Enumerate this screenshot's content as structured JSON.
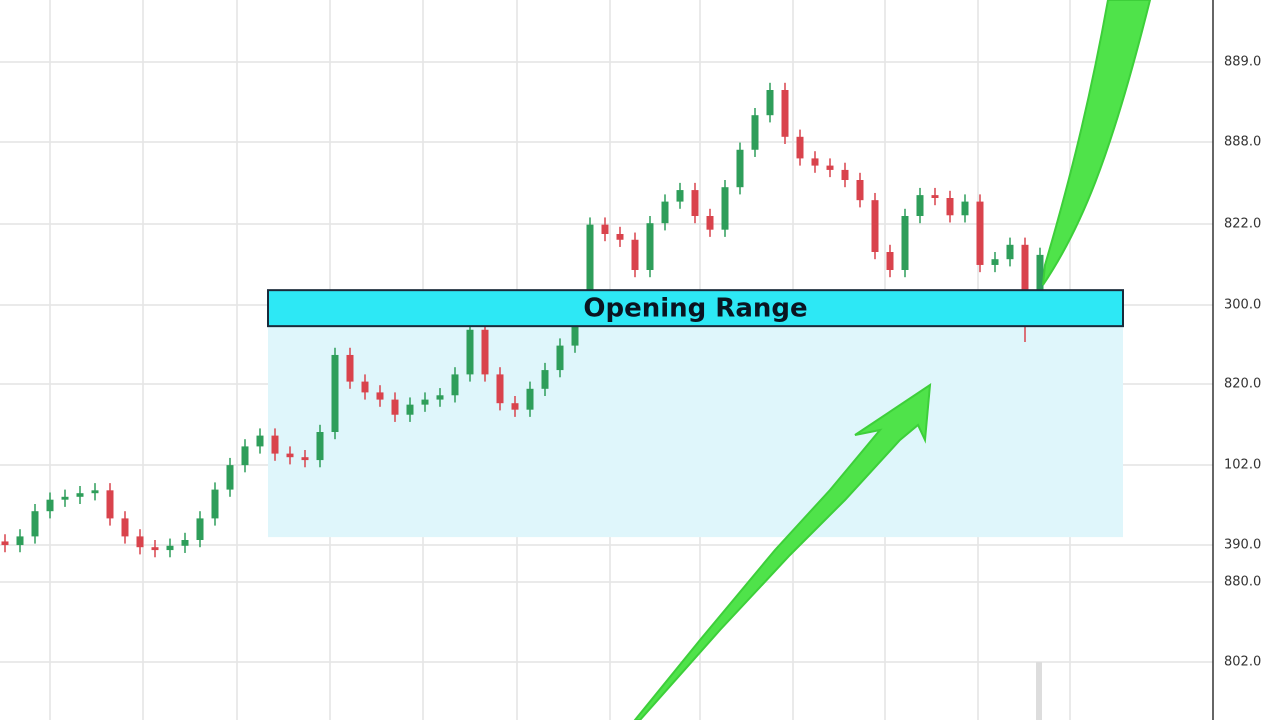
{
  "chart_data": {
    "type": "candlestick",
    "ylim": [
      0,
      100
    ],
    "up_color": "#2e9e5a",
    "down_color": "#d9434c",
    "open": [
      24.8,
      24.3,
      25.5,
      29,
      30.6,
      31,
      31.5,
      31.9,
      28,
      25.5,
      24,
      23.6,
      24.2,
      25,
      28,
      32,
      35.4,
      38,
      39.5,
      37,
      36.5,
      36.1,
      40,
      50.7,
      47,
      45.5,
      44.5,
      42.4,
      43.8,
      44.5,
      45.1,
      48,
      54.2,
      48,
      44,
      43.1,
      46,
      48.6,
      52,
      56,
      68.8,
      67.5,
      66.7,
      62.5,
      69,
      72,
      73.6,
      70,
      68.1,
      74,
      79.2,
      84,
      87.5,
      81,
      78,
      77,
      76.4,
      75,
      72.2,
      65,
      62.5,
      70,
      72.9,
      72.5,
      70.1,
      72,
      63.2,
      64,
      66,
      55.6
    ],
    "high": [
      25.8,
      26.5,
      30,
      31.6,
      32,
      32.5,
      32.9,
      32.9,
      29,
      26.5,
      25,
      25.2,
      26,
      29,
      33,
      36.4,
      39,
      40.5,
      40.5,
      38,
      37.5,
      41,
      51.7,
      51.7,
      48,
      46.5,
      45.5,
      44.8,
      45.5,
      46.1,
      49,
      55.2,
      55.2,
      49,
      45,
      47,
      49.6,
      53,
      57,
      69.8,
      69.8,
      68.5,
      67.7,
      70,
      73,
      74.6,
      74.6,
      71,
      75,
      80.2,
      85,
      88.5,
      88.5,
      82,
      79,
      78,
      77.4,
      76,
      73.2,
      66,
      71,
      73.9,
      73.9,
      73.5,
      73,
      73,
      65,
      67,
      67,
      65.6
    ],
    "low": [
      23.3,
      23.3,
      24.5,
      28,
      29.6,
      30,
      30.5,
      27,
      24.5,
      23,
      22.6,
      22.6,
      23.2,
      24,
      27,
      31,
      34.4,
      37,
      36,
      35.5,
      35.1,
      35.1,
      39,
      46,
      44.5,
      43.5,
      41.4,
      41.4,
      42.8,
      43.5,
      44.1,
      47,
      47,
      43,
      42.1,
      42.1,
      45,
      47.6,
      51,
      55,
      66.5,
      65.7,
      61.5,
      61.5,
      68,
      71,
      69,
      67.1,
      67.1,
      73,
      78.2,
      83,
      80,
      77,
      76,
      75.4,
      74,
      71.2,
      64,
      61.5,
      61.5,
      69,
      71.5,
      69.1,
      69.1,
      62.2,
      62.2,
      63,
      52.5,
      54.6
    ],
    "close": [
      24.3,
      25.5,
      29,
      30.6,
      31,
      31.5,
      31.9,
      28,
      25.5,
      24,
      23.6,
      24.2,
      25,
      28,
      32,
      35.4,
      38,
      39.5,
      37,
      36.5,
      36.1,
      40,
      50.7,
      47,
      45.5,
      44.5,
      42.4,
      43.8,
      44.5,
      45.1,
      48,
      54.2,
      48,
      44,
      43.1,
      46,
      48.6,
      52,
      56,
      68.8,
      67.5,
      66.7,
      62.5,
      69,
      72,
      73.6,
      70,
      68.1,
      74,
      79.2,
      84,
      87.5,
      81,
      78,
      77,
      76.4,
      75,
      72.2,
      65,
      62.5,
      70,
      72.9,
      72.5,
      70.1,
      72,
      63.2,
      64,
      66,
      55.6,
      64.6
    ],
    "opening_range": {
      "label": "Opening Range",
      "high": 59.7,
      "low": 54.7,
      "zone_low": 25.4,
      "color": "#2de8f5",
      "zone_color": "#dff6fb"
    },
    "axis_labels": [
      "889.0",
      "888.0",
      "822.0",
      "300.0",
      "820.0",
      "102.0",
      "390.0",
      "880.0",
      "802.0"
    ]
  }
}
